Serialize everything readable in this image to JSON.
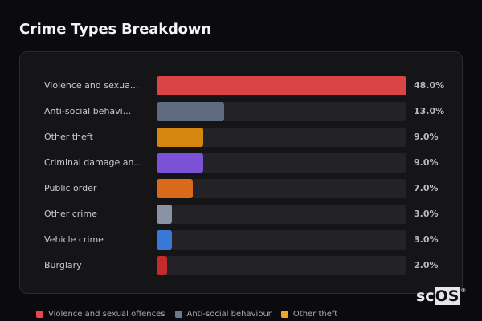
{
  "header": {
    "title": "Crime Types Breakdown"
  },
  "logo": {
    "prefix": "sc",
    "highlight": "OS",
    "mark": "®"
  },
  "chart_data": {
    "type": "bar",
    "orientation": "horizontal",
    "title": "Crime Types Breakdown",
    "xlabel": "",
    "ylabel": "",
    "xlim": [
      0,
      48
    ],
    "grid": false,
    "legend_position": "bottom",
    "categories": [
      "Violence and sexual offences",
      "Anti-social behaviour",
      "Other theft",
      "Criminal damage and arson",
      "Public order",
      "Other crime",
      "Vehicle crime",
      "Burglary"
    ],
    "display_labels": [
      "Violence and sexua...",
      "Anti-social behavi...",
      "Other theft",
      "Criminal damage an...",
      "Public order",
      "Other crime",
      "Vehicle crime",
      "Burglary"
    ],
    "values": [
      48.0,
      13.0,
      9.0,
      9.0,
      7.0,
      3.0,
      3.0,
      2.0
    ],
    "value_labels": [
      "48.0%",
      "13.0%",
      "9.0%",
      "9.0%",
      "7.0%",
      "3.0%",
      "3.0%",
      "2.0%"
    ],
    "colors": [
      "#d94545",
      "#5d6b80",
      "#d4870f",
      "#7b52d6",
      "#d96a1c",
      "#8a93a3",
      "#3a78d6",
      "#c42b2b"
    ]
  },
  "rows": [
    {
      "label": "Violence and sexua...",
      "value": "48.0%",
      "pct": 48.0,
      "color": "#d94545"
    },
    {
      "label": "Anti-social behavi...",
      "value": "13.0%",
      "pct": 13.0,
      "color": "#5d6b80"
    },
    {
      "label": "Other theft",
      "value": "9.0%",
      "pct": 9.0,
      "color": "#d4870f"
    },
    {
      "label": "Criminal damage an...",
      "value": "9.0%",
      "pct": 9.0,
      "color": "#7b52d6"
    },
    {
      "label": "Public order",
      "value": "7.0%",
      "pct": 7.0,
      "color": "#d96a1c"
    },
    {
      "label": "Other crime",
      "value": "3.0%",
      "pct": 3.0,
      "color": "#8a93a3"
    },
    {
      "label": "Vehicle crime",
      "value": "3.0%",
      "pct": 3.0,
      "color": "#3a78d6"
    },
    {
      "label": "Burglary",
      "value": "2.0%",
      "pct": 2.0,
      "color": "#c42b2b"
    }
  ],
  "legend": [
    {
      "label": "Violence and sexual offences",
      "color": "#e5484d"
    },
    {
      "label": "Anti-social behaviour",
      "color": "#6b7a90"
    },
    {
      "label": "Other theft",
      "color": "#f5a524"
    }
  ]
}
